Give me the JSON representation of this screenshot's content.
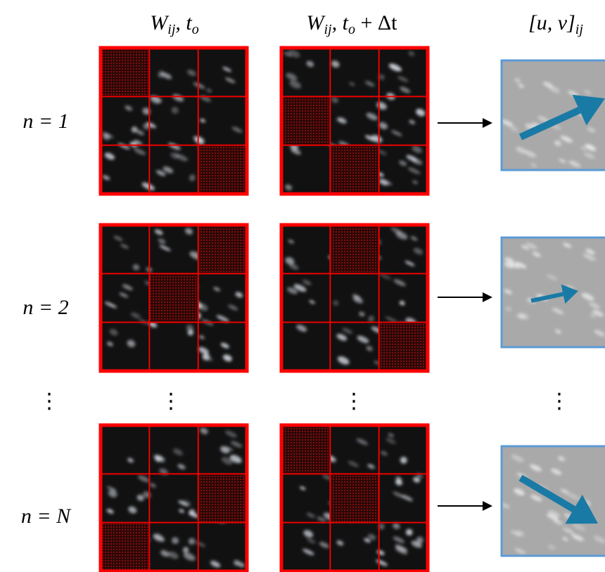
{
  "columns": [
    {
      "parts": [
        "W",
        "ij",
        ", t",
        "o"
      ]
    },
    {
      "parts": [
        "W",
        "ij",
        ", t",
        "o",
        " + Δt"
      ]
    },
    {
      "parts": [
        "[u, v]",
        "ij"
      ]
    }
  ],
  "rows": [
    {
      "label": "n = 1"
    },
    {
      "label": "n = 2"
    },
    {
      "label": "n = N"
    }
  ],
  "ellipsis": "⋮"
}
